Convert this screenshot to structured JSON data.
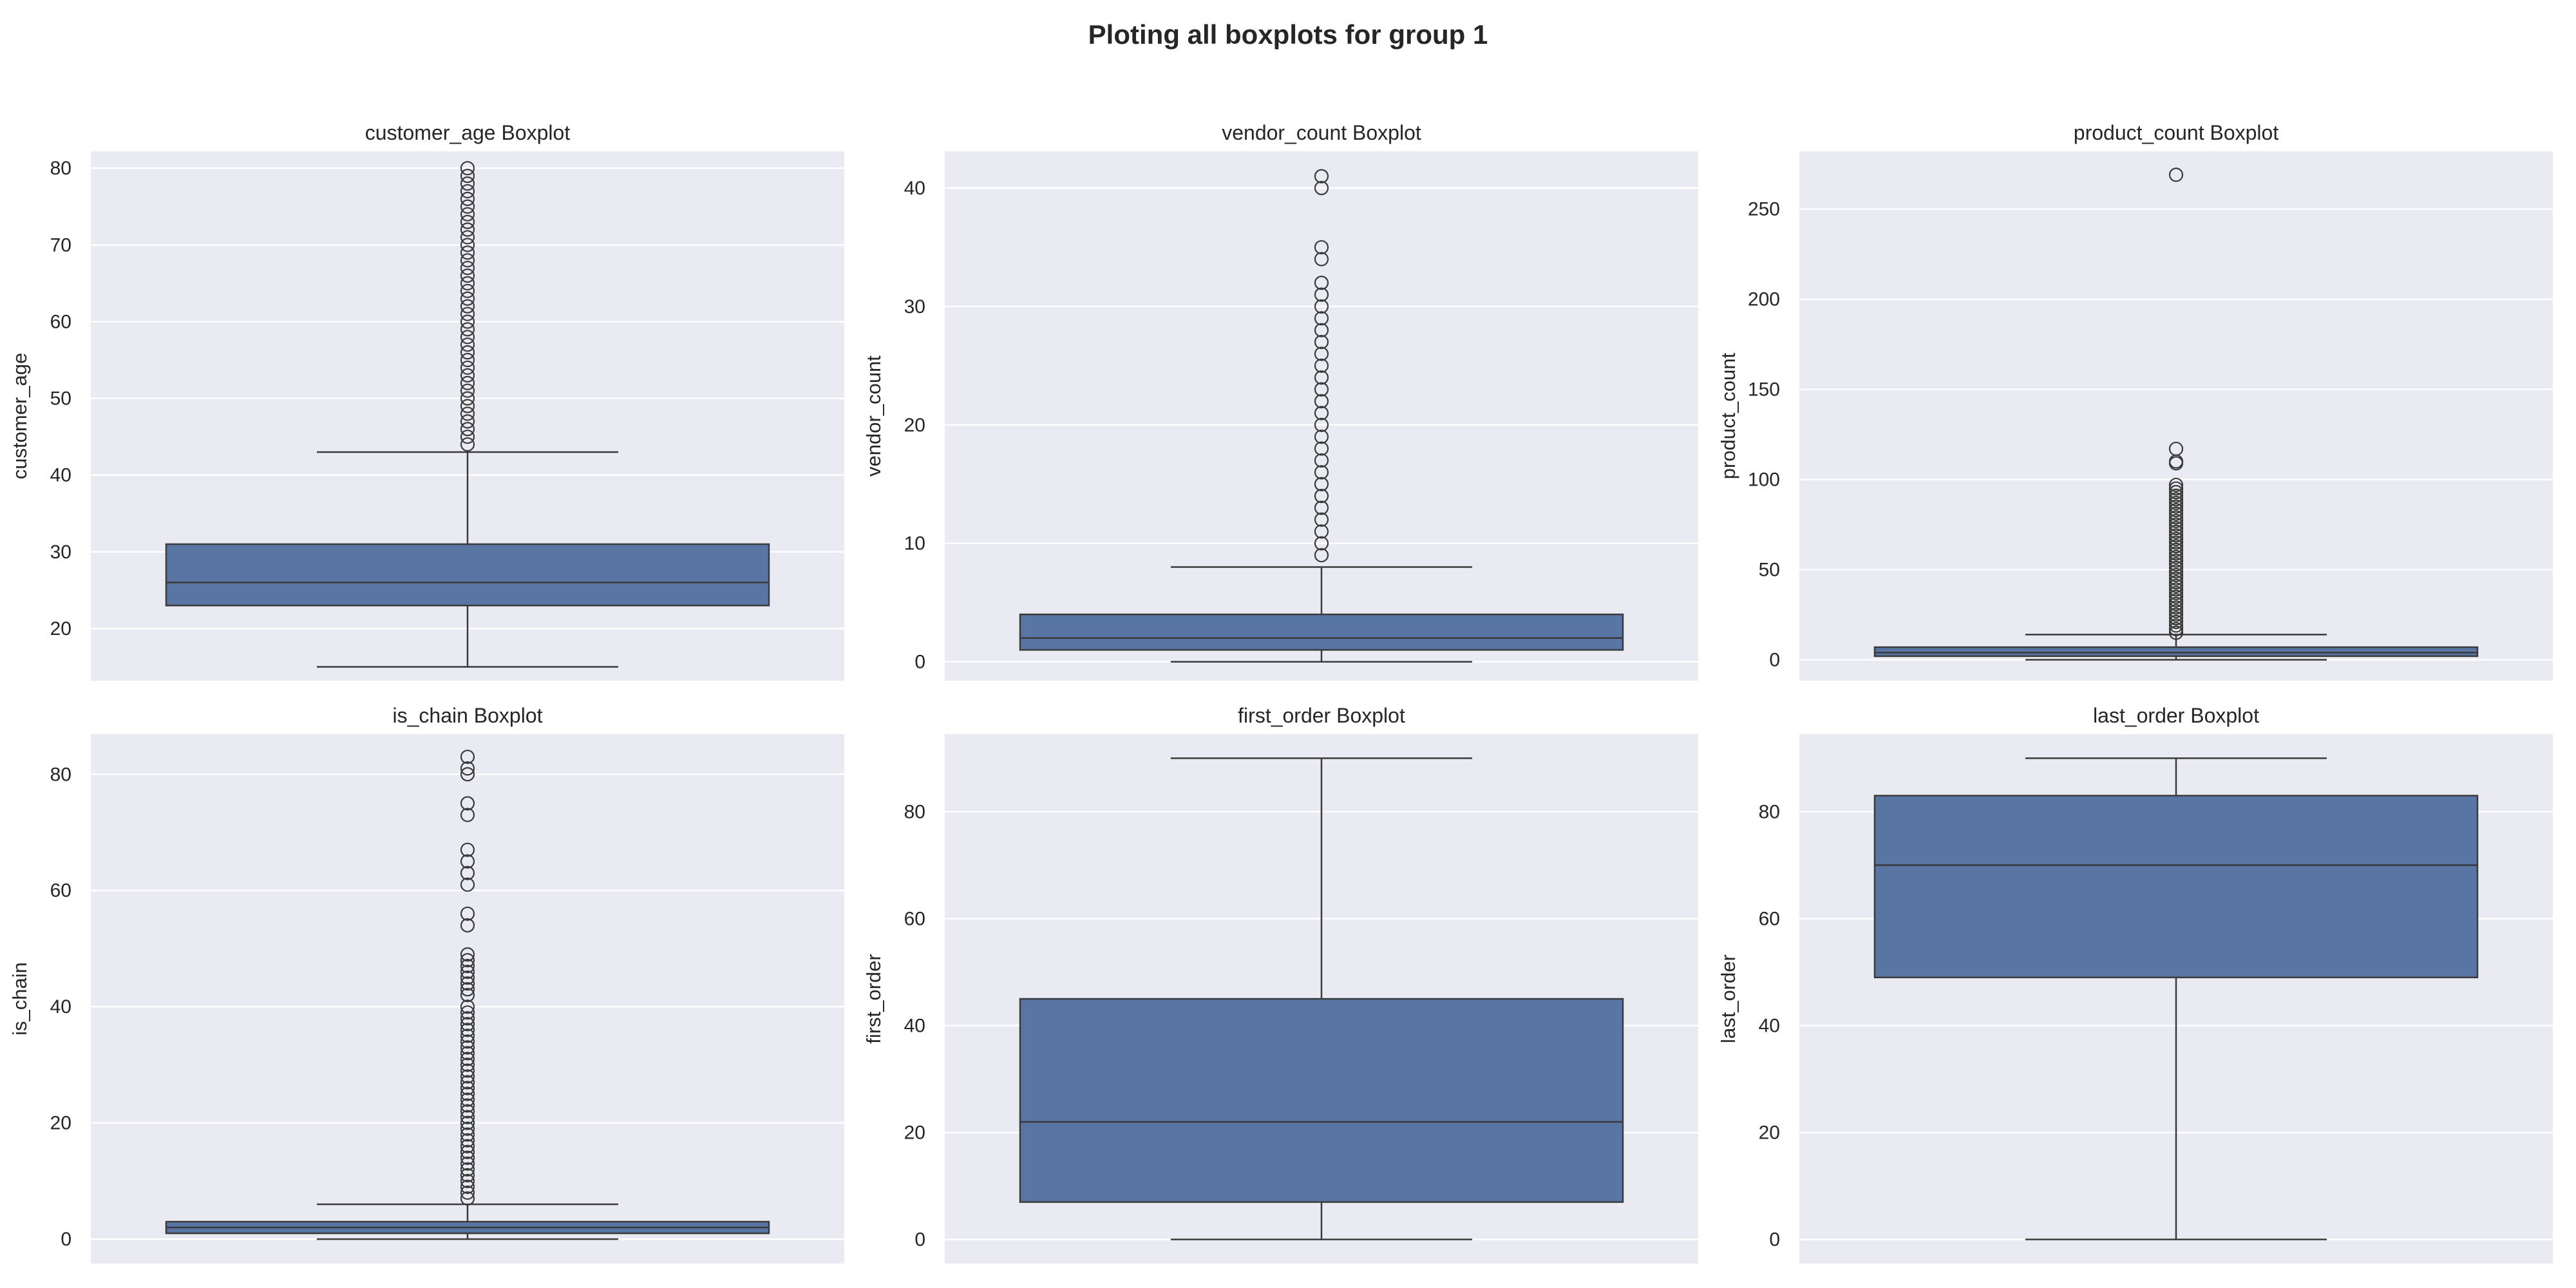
{
  "figure": {
    "title": "Ploting all boxplots for group 1"
  },
  "colors": {
    "panel_background": "#eaeaf2",
    "box_fill": "#5875a4",
    "line": "#3a3a3a",
    "grid": "#ffffff"
  },
  "chart_data": [
    {
      "type": "box",
      "title": "customer_age Boxplot",
      "xlabel": "",
      "ylabel": "customer_age",
      "ylim": [
        13.2,
        82.2
      ],
      "yticks": [
        20,
        30,
        40,
        50,
        60,
        70,
        80
      ],
      "grid": true,
      "box": {
        "q1": 23,
        "median": 26,
        "q3": 31,
        "whisker_low": 15,
        "whisker_high": 43
      },
      "outliers": [
        44,
        45,
        46,
        47,
        48,
        49,
        50,
        51,
        52,
        53,
        54,
        55,
        56,
        57,
        58,
        59,
        60,
        61,
        62,
        63,
        64,
        65,
        66,
        67,
        68,
        69,
        70,
        71,
        72,
        73,
        74,
        75,
        76,
        77,
        78,
        79,
        80
      ]
    },
    {
      "type": "box",
      "title": "vendor_count Boxplot",
      "xlabel": "",
      "ylabel": "vendor_count",
      "ylim": [
        -1.6,
        43.1
      ],
      "yticks": [
        0,
        10,
        20,
        30,
        40
      ],
      "grid": true,
      "box": {
        "q1": 1,
        "median": 2,
        "q3": 4,
        "whisker_low": 0,
        "whisker_high": 8
      },
      "outliers": [
        9,
        10,
        11,
        12,
        13,
        14,
        15,
        16,
        17,
        18,
        19,
        20,
        21,
        22,
        23,
        24,
        25,
        26,
        27,
        28,
        29,
        30,
        31,
        32,
        34,
        35,
        40,
        41
      ]
    },
    {
      "type": "box",
      "title": "product_count Boxplot",
      "xlabel": "",
      "ylabel": "product_count",
      "ylim": [
        -11.6,
        282.0
      ],
      "yticks": [
        0,
        50,
        100,
        150,
        200,
        250
      ],
      "grid": true,
      "box": {
        "q1": 2,
        "median": 4,
        "q3": 7,
        "whisker_low": 0,
        "whisker_high": 14
      },
      "outliers": [
        15,
        17,
        19,
        21,
        23,
        25,
        27,
        29,
        31,
        33,
        35,
        37,
        39,
        41,
        43,
        45,
        47,
        49,
        51,
        53,
        55,
        57,
        59,
        61,
        63,
        65,
        67,
        69,
        71,
        73,
        75,
        77,
        79,
        81,
        83,
        85,
        87,
        89,
        91,
        93,
        95,
        97,
        109,
        110,
        117,
        269
      ]
    },
    {
      "type": "box",
      "title": "is_chain Boxplot",
      "xlabel": "",
      "ylabel": "is_chain",
      "ylim": [
        -4.2,
        86.9
      ],
      "yticks": [
        0,
        20,
        40,
        60,
        80
      ],
      "grid": true,
      "box": {
        "q1": 1,
        "median": 2,
        "q3": 3,
        "whisker_low": 0,
        "whisker_high": 6
      },
      "outliers": [
        7,
        8,
        9,
        10,
        11,
        12,
        13,
        14,
        15,
        16,
        17,
        18,
        19,
        20,
        21,
        22,
        23,
        24,
        25,
        26,
        27,
        28,
        29,
        30,
        31,
        32,
        33,
        34,
        35,
        36,
        37,
        38,
        39,
        40,
        42,
        43,
        44,
        45,
        46,
        47,
        48,
        49,
        54,
        56,
        61,
        63,
        65,
        67,
        73,
        75,
        80,
        81,
        83
      ]
    },
    {
      "type": "box",
      "title": "first_order Boxplot",
      "xlabel": "",
      "ylabel": "first_order",
      "ylim": [
        -4.5,
        94.5
      ],
      "yticks": [
        0,
        20,
        40,
        60,
        80
      ],
      "grid": true,
      "box": {
        "q1": 7,
        "median": 22,
        "q3": 45,
        "whisker_low": 0,
        "whisker_high": 90
      },
      "outliers": []
    },
    {
      "type": "box",
      "title": "last_order Boxplot",
      "xlabel": "",
      "ylabel": "last_order",
      "ylim": [
        -4.5,
        94.5
      ],
      "yticks": [
        0,
        20,
        40,
        60,
        80
      ],
      "grid": true,
      "box": {
        "q1": 49,
        "median": 70,
        "q3": 83,
        "whisker_low": 0,
        "whisker_high": 90
      },
      "outliers": []
    }
  ]
}
